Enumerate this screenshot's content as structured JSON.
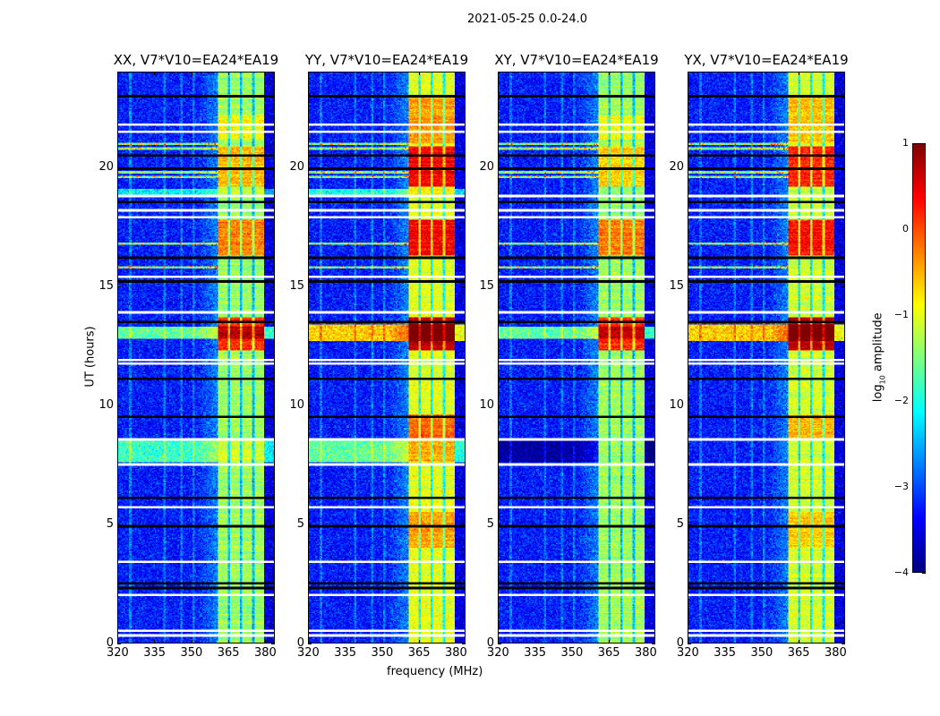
{
  "suptitle": "2021-05-25 0.0-24.0",
  "chart_data": {
    "type": "heatmap",
    "title": "2021-05-25 0.0-24.0",
    "xlabel": "frequency (MHz)",
    "ylabel": "UT (hours)",
    "xlim": [
      320,
      384
    ],
    "ylim": [
      0,
      24
    ],
    "xticks": [
      "320",
      "335",
      "350",
      "365",
      "380"
    ],
    "xtick_values": [
      320,
      335,
      350,
      365,
      380
    ],
    "yticks": [
      "0",
      "5",
      "10",
      "15",
      "20"
    ],
    "ytick_values": [
      0,
      5,
      10,
      15,
      20
    ],
    "colorbar": {
      "label_main": "log",
      "label_sub": "10",
      "label_rest": " amplitude",
      "range": [
        -4,
        1
      ],
      "ticks": [
        "1",
        "0",
        "−1",
        "−2",
        "−3",
        "−4"
      ],
      "tick_values": [
        1,
        0,
        -1,
        -2,
        -3,
        -4
      ],
      "colormap": "jet"
    },
    "band": {
      "start_mhz": 361,
      "end_mhz": 380,
      "gap_mhz": [
        365.5,
        370.5,
        375.5
      ]
    },
    "rfi_channels_mhz": [
      325,
      339,
      346,
      351
    ],
    "rfi_times_h": [
      19.6,
      19.8,
      20.8,
      21.0,
      16.8,
      15.8
    ],
    "flagged_white_h": [
      0.3,
      0.5,
      2.0,
      7.5,
      8.55,
      11.75,
      11.9,
      13.9,
      15.4,
      17.9,
      18.2,
      18.8,
      21.5,
      21.8,
      3.4,
      5.7
    ],
    "flagged_black_h": [
      2.3,
      2.5,
      9.5,
      11.1,
      13.5,
      15.2,
      16.2,
      18.55,
      19.95,
      20.5,
      23.0,
      4.9,
      6.1
    ],
    "panels": [
      {
        "title": "XX, V7*V10=EA24*EA19",
        "band_level": -1.35,
        "events": [
          {
            "start": 7.6,
            "end": 8.5,
            "band_boost": 0.0,
            "broadband_boost": 1.4
          },
          {
            "start": 12.3,
            "end": 13.7,
            "band_boost": 1.5,
            "broadband_boost": 0.0
          },
          {
            "start": 12.8,
            "end": 13.3,
            "band_boost": 0.3,
            "broadband_boost": 1.6
          },
          {
            "start": 16.3,
            "end": 17.8,
            "band_boost": 1.1,
            "broadband_boost": 0.0
          },
          {
            "start": 19.2,
            "end": 20.9,
            "band_boost": 0.8,
            "broadband_boost": 0.0
          },
          {
            "start": 18.8,
            "end": 19.1,
            "band_boost": 0.0,
            "broadband_boost": 1.0
          },
          {
            "start": 21.2,
            "end": 22.2,
            "band_boost": 0.5,
            "broadband_boost": 0.0
          }
        ]
      },
      {
        "title": "YY, V7*V10=EA24*EA19",
        "band_level": -1.0,
        "events": [
          {
            "start": 7.6,
            "end": 8.5,
            "band_boost": 0.2,
            "broadband_boost": 1.6
          },
          {
            "start": 8.6,
            "end": 9.6,
            "band_boost": 0.9,
            "broadband_boost": 0.0
          },
          {
            "start": 4.0,
            "end": 5.5,
            "band_boost": 0.6,
            "broadband_boost": 0.0
          },
          {
            "start": 12.3,
            "end": 13.7,
            "band_boost": 1.7,
            "broadband_boost": 0.0
          },
          {
            "start": 12.7,
            "end": 13.4,
            "band_boost": 0.4,
            "broadband_boost": 2.6
          },
          {
            "start": 16.3,
            "end": 17.8,
            "band_boost": 1.4,
            "broadband_boost": 0.0
          },
          {
            "start": 19.2,
            "end": 20.9,
            "band_boost": 1.4,
            "broadband_boost": 0.0
          },
          {
            "start": 18.8,
            "end": 19.1,
            "band_boost": 0.0,
            "broadband_boost": 1.2
          },
          {
            "start": 21.0,
            "end": 23.0,
            "band_boost": 0.6,
            "broadband_boost": 0.0
          }
        ]
      },
      {
        "title": "XY, V7*V10=EA24*EA19",
        "band_level": -1.35,
        "events": [
          {
            "start": 7.6,
            "end": 8.5,
            "band_boost": 0.0,
            "broadband_boost": -0.6
          },
          {
            "start": 12.3,
            "end": 13.7,
            "band_boost": 1.5,
            "broadband_boost": 0.0
          },
          {
            "start": 12.8,
            "end": 13.3,
            "band_boost": 0.3,
            "broadband_boost": 1.6
          },
          {
            "start": 16.3,
            "end": 17.8,
            "band_boost": 1.1,
            "broadband_boost": 0.0
          },
          {
            "start": 19.2,
            "end": 20.9,
            "band_boost": 0.7,
            "broadband_boost": 0.0
          },
          {
            "start": 21.2,
            "end": 22.2,
            "band_boost": 0.4,
            "broadband_boost": 0.0
          }
        ]
      },
      {
        "title": "YX, V7*V10=EA24*EA19",
        "band_level": -1.1,
        "events": [
          {
            "start": 8.6,
            "end": 9.6,
            "band_boost": 0.6,
            "broadband_boost": 0.0
          },
          {
            "start": 4.0,
            "end": 5.5,
            "band_boost": 0.5,
            "broadband_boost": 0.0
          },
          {
            "start": 12.3,
            "end": 13.7,
            "band_boost": 1.8,
            "broadband_boost": 0.0
          },
          {
            "start": 12.7,
            "end": 13.4,
            "band_boost": 0.4,
            "broadband_boost": 2.6
          },
          {
            "start": 16.3,
            "end": 17.8,
            "band_boost": 1.4,
            "broadband_boost": 0.0
          },
          {
            "start": 19.2,
            "end": 20.9,
            "band_boost": 1.3,
            "broadband_boost": 0.0
          },
          {
            "start": 21.0,
            "end": 23.0,
            "band_boost": 0.5,
            "broadband_boost": 0.0
          }
        ]
      }
    ]
  }
}
